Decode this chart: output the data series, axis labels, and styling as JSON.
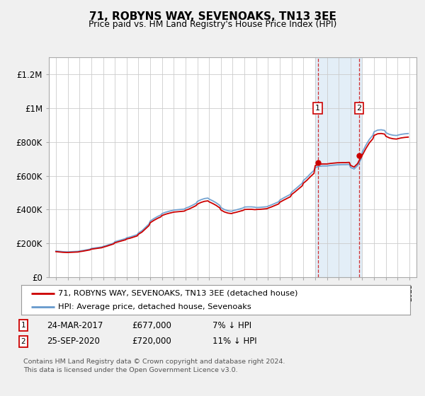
{
  "title": "71, ROBYNS WAY, SEVENOAKS, TN13 3EE",
  "subtitle": "Price paid vs. HM Land Registry's House Price Index (HPI)",
  "footer": "Contains HM Land Registry data © Crown copyright and database right 2024.\nThis data is licensed under the Open Government Licence v3.0.",
  "legend_line1": "71, ROBYNS WAY, SEVENOAKS, TN13 3EE (detached house)",
  "legend_line2": "HPI: Average price, detached house, Sevenoaks",
  "annotation1": {
    "label": "1",
    "date": "24-MAR-2017",
    "price": "£677,000",
    "hpi": "7% ↓ HPI"
  },
  "annotation2": {
    "label": "2",
    "date": "25-SEP-2020",
    "price": "£720,000",
    "hpi": "11% ↓ HPI"
  },
  "red_color": "#cc0000",
  "blue_color": "#6699cc",
  "background_color": "#f0f0f0",
  "plot_bg_color": "#ffffff",
  "grid_color": "#cccccc",
  "shade_color": "#d8e8f5",
  "ylim": [
    0,
    1300000
  ],
  "yticks": [
    0,
    200000,
    400000,
    600000,
    800000,
    1000000,
    1200000
  ],
  "ytick_labels": [
    "£0",
    "£200K",
    "£400K",
    "£600K",
    "£800K",
    "£1M",
    "£1.2M"
  ],
  "sale1_x": 2017.23,
  "sale1_y": 677000,
  "sale2_x": 2020.73,
  "sale2_y": 720000,
  "shade_x1": 2017.0,
  "shade_x2": 2020.9,
  "xlim_left": 1994.4,
  "xlim_right": 2025.6
}
